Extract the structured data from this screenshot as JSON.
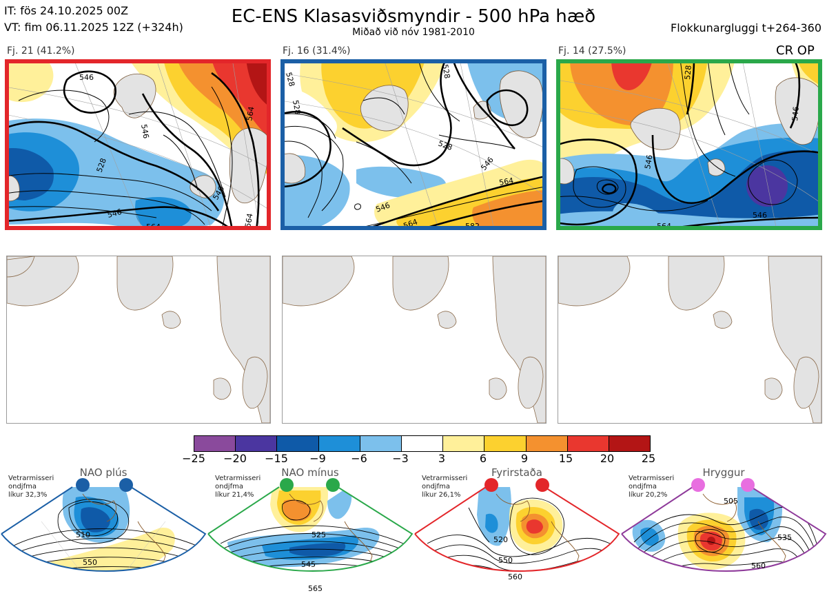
{
  "header": {
    "it_line": "IT: fös 24.10.2025 00Z",
    "vt_line": "VT: fim 06.11.2025 12Z  (+324h)",
    "title": "EC-ENS Klasasviðsmyndir - 500 hPa hæð",
    "subtitle": "Miðað við nóv 1981-2010",
    "window": "Flokkunargluggi t+264-360"
  },
  "clusters": [
    {
      "label": "Fj. 21 (41.2%)",
      "frame_color": "#e3262a",
      "contour_labels": [
        "546",
        "546",
        "528",
        "546",
        "564",
        "564",
        "564",
        "546"
      ]
    },
    {
      "label": "Fj. 16 (31.4%)",
      "frame_color": "#1b5fa6",
      "contour_labels": [
        "528",
        "528",
        "528",
        "528",
        "546",
        "564",
        "546",
        "564",
        "582"
      ]
    },
    {
      "label": "Fj. 14 (27.5%)",
      "frame_color": "#2aa84a",
      "contour_labels": [
        "528",
        "546",
        "546",
        "546",
        "564"
      ]
    }
  ],
  "cr_op": "CR OP",
  "colorbar": {
    "colors": [
      "#8a4a9c",
      "#4b36a0",
      "#0f5aa8",
      "#1e8fd8",
      "#7cc0ec",
      "#ffffff",
      "#fff09a",
      "#fcd12f",
      "#f4912f",
      "#e9372f",
      "#b31515"
    ],
    "ticks": [
      "−25",
      "−20",
      "−15",
      "−9",
      "−6",
      "−3",
      "3",
      "6",
      "9",
      "15",
      "20",
      "25"
    ]
  },
  "regimes": [
    {
      "name": "NAO plús",
      "note_l1": "Vetrarmisseri",
      "note_l2": "ondjfma",
      "note_l3": "líkur 32,3%",
      "edge_color": "#1b5fa6",
      "dot_color": "#1b5fa6",
      "contour_labels": [
        "510",
        "550"
      ]
    },
    {
      "name": "NAO mínus",
      "note_l1": "Vetrarmisseri",
      "note_l2": "ondjfma",
      "note_l3": "líkur 21,4%",
      "edge_color": "#2aa84a",
      "dot_color": "#2aa84a",
      "contour_labels": [
        "525",
        "545",
        "565"
      ]
    },
    {
      "name": "Fyrirstaða",
      "note_l1": "Vetrarmisseri",
      "note_l2": "ondjfma",
      "note_l3": "líkur 26,1%",
      "edge_color": "#e3262a",
      "dot_color": "#e3262a",
      "contour_labels": [
        "520",
        "550",
        "560"
      ]
    },
    {
      "name": "Hryggur",
      "note_l1": "Vetrarmisseri",
      "note_l2": "ondjfma",
      "note_l3": "líkur 20,2%",
      "edge_color": "#8e3a9a",
      "dot_color": "#e86ee0",
      "contour_labels": [
        "505",
        "535",
        "560"
      ]
    }
  ]
}
